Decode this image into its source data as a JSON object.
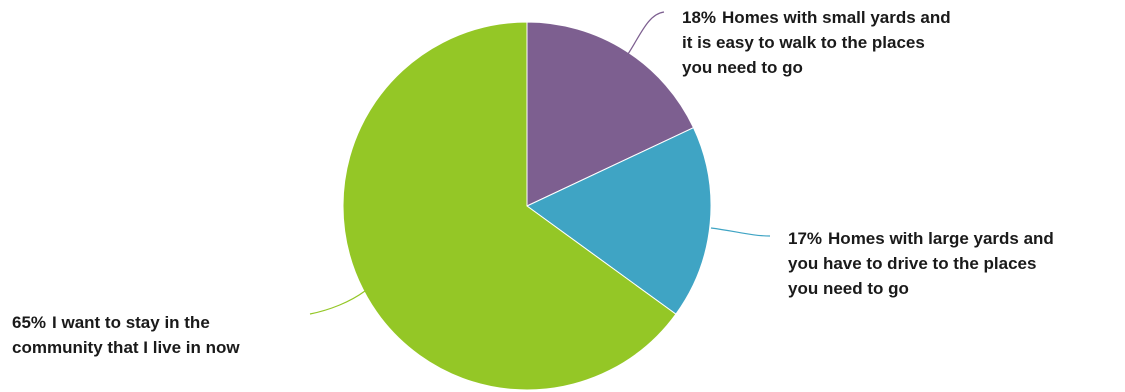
{
  "chart_data": {
    "type": "pie",
    "slices": [
      {
        "label": "Homes with small yards and it is easy to walk to the places you need to go",
        "value": 18,
        "value_text": "18%",
        "lines": [
          "Homes with small yards and",
          "it is easy to walk to the places",
          "you need to go"
        ],
        "color": "#7d5f90"
      },
      {
        "label": "Homes with large yards and you have to drive to the places you need to go",
        "value": 17,
        "value_text": "17%",
        "lines": [
          "Homes with large yards and",
          "you have to drive to the places",
          "you need to go"
        ],
        "color": "#3fa4c4"
      },
      {
        "label": "I want to stay in the community that I live in now",
        "value": 65,
        "value_text": "65%",
        "lines": [
          "I want to stay in the",
          "community that I live in now"
        ],
        "color": "#94c726"
      }
    ],
    "leader_color": {
      "0": "#7d5f90",
      "1": "#3fa4c4",
      "2": "#94c726"
    }
  }
}
